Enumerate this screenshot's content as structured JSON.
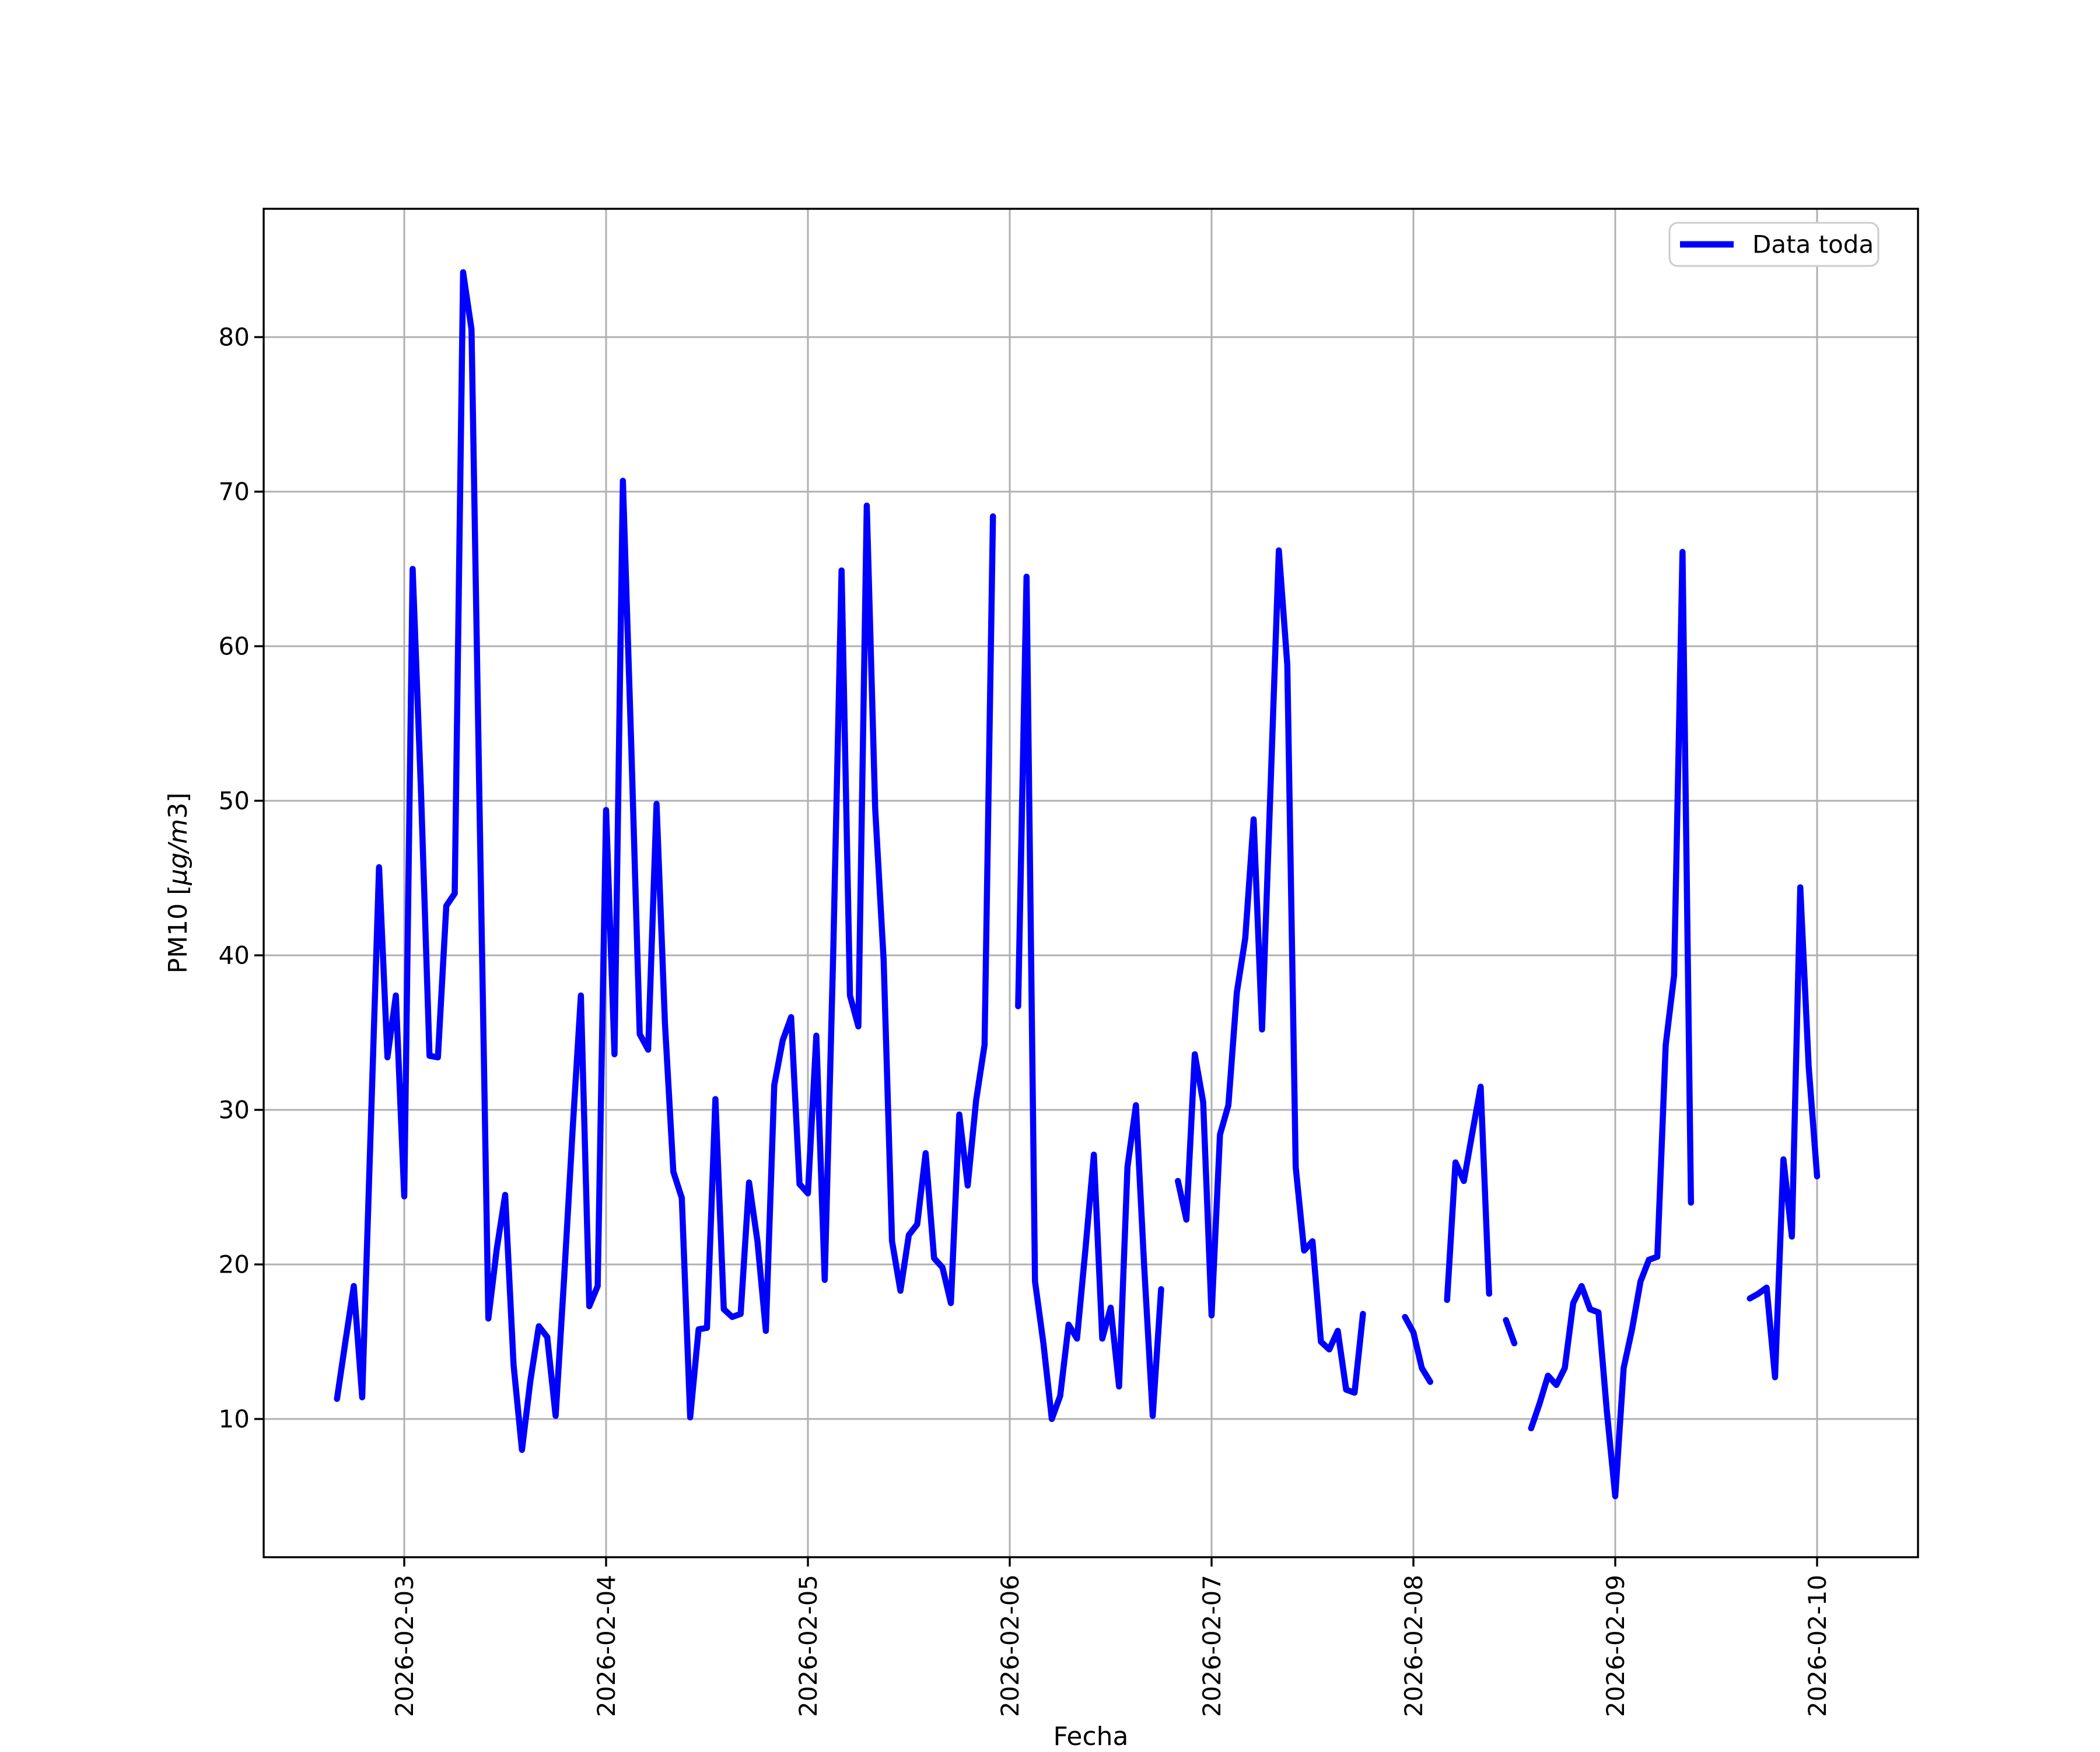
{
  "figure": {
    "background": "#ffffff"
  },
  "chart_data": {
    "type": "line",
    "title": "",
    "xlabel": "Fecha",
    "ylabel": "PM10 [µg/m3]",
    "ylabel_parts": {
      "prefix": "PM10 [",
      "italic": "µg/m",
      "suffix": "3]"
    },
    "legend": {
      "label": "Data toda",
      "position": "upper right",
      "line_color": "#0000ff"
    },
    "grid": true,
    "grid_color": "#b0b0b0",
    "line_color": "#0000ff",
    "x_tick_labels": [
      "2026-02-03",
      "2026-02-04",
      "2026-02-05",
      "2026-02-06",
      "2026-02-07",
      "2026-02-08",
      "2026-02-09",
      "2026-02-10"
    ],
    "y_ticks": [
      10,
      20,
      30,
      40,
      50,
      60,
      70,
      80
    ],
    "ylim": [
      1.1,
      88.3
    ],
    "x_start": "2026-02-02 16:00",
    "x_step_hours": 1,
    "x_first_tick_index": 8,
    "series": [
      {
        "name": "Data toda",
        "color": "#0000ff",
        "values": [
          11.3,
          15.0,
          18.6,
          11.4,
          28.5,
          45.7,
          33.4,
          37.4,
          24.4,
          65.0,
          50.5,
          33.5,
          33.4,
          43.2,
          44.0,
          84.2,
          80.5,
          48.0,
          16.5,
          21.0,
          24.5,
          13.5,
          8.0,
          12.5,
          16.0,
          15.3,
          10.2,
          19.0,
          28.5,
          37.4,
          17.3,
          18.6,
          49.4,
          33.6,
          70.7,
          53.4,
          34.9,
          33.9,
          49.8,
          35.6,
          26.0,
          24.3,
          10.1,
          15.8,
          15.9,
          30.7,
          17.1,
          16.6,
          16.8,
          25.3,
          21.5,
          15.7,
          31.6,
          34.5,
          36.0,
          25.2,
          24.6,
          34.8,
          19.0,
          40.0,
          64.9,
          37.4,
          35.4,
          69.1,
          49.5,
          39.7,
          21.5,
          18.3,
          21.9,
          22.6,
          27.2,
          20.4,
          19.8,
          17.5,
          29.7,
          25.1,
          30.6,
          34.2,
          68.4,
          null,
          null,
          36.7,
          64.5,
          18.9,
          14.9,
          10.0,
          11.5,
          16.1,
          15.2,
          21.0,
          27.1,
          15.2,
          17.2,
          12.1,
          26.3,
          30.3,
          19.7,
          10.2,
          18.4,
          null,
          25.4,
          22.9,
          33.6,
          30.5,
          16.7,
          28.4,
          30.3,
          37.6,
          41.1,
          48.8,
          35.2,
          50.7,
          66.2,
          58.8,
          26.3,
          20.9,
          21.5,
          15.0,
          14.5,
          15.7,
          11.9,
          11.7,
          16.8,
          null,
          null,
          null,
          null,
          16.6,
          15.6,
          13.3,
          12.4,
          null,
          17.7,
          26.6,
          25.4,
          28.5,
          31.5,
          18.1,
          null,
          16.4,
          14.9,
          null,
          9.4,
          11.0,
          12.8,
          12.2,
          13.3,
          17.5,
          18.6,
          17.1,
          16.9,
          10.5,
          5.0,
          13.3,
          15.8,
          18.9,
          20.3,
          20.5,
          34.2,
          38.7,
          66.1,
          24.0,
          null,
          null,
          null,
          null,
          null,
          null,
          17.8,
          18.1,
          18.5,
          12.7,
          26.8,
          21.8,
          44.4,
          32.8,
          25.7
        ]
      }
    ]
  }
}
